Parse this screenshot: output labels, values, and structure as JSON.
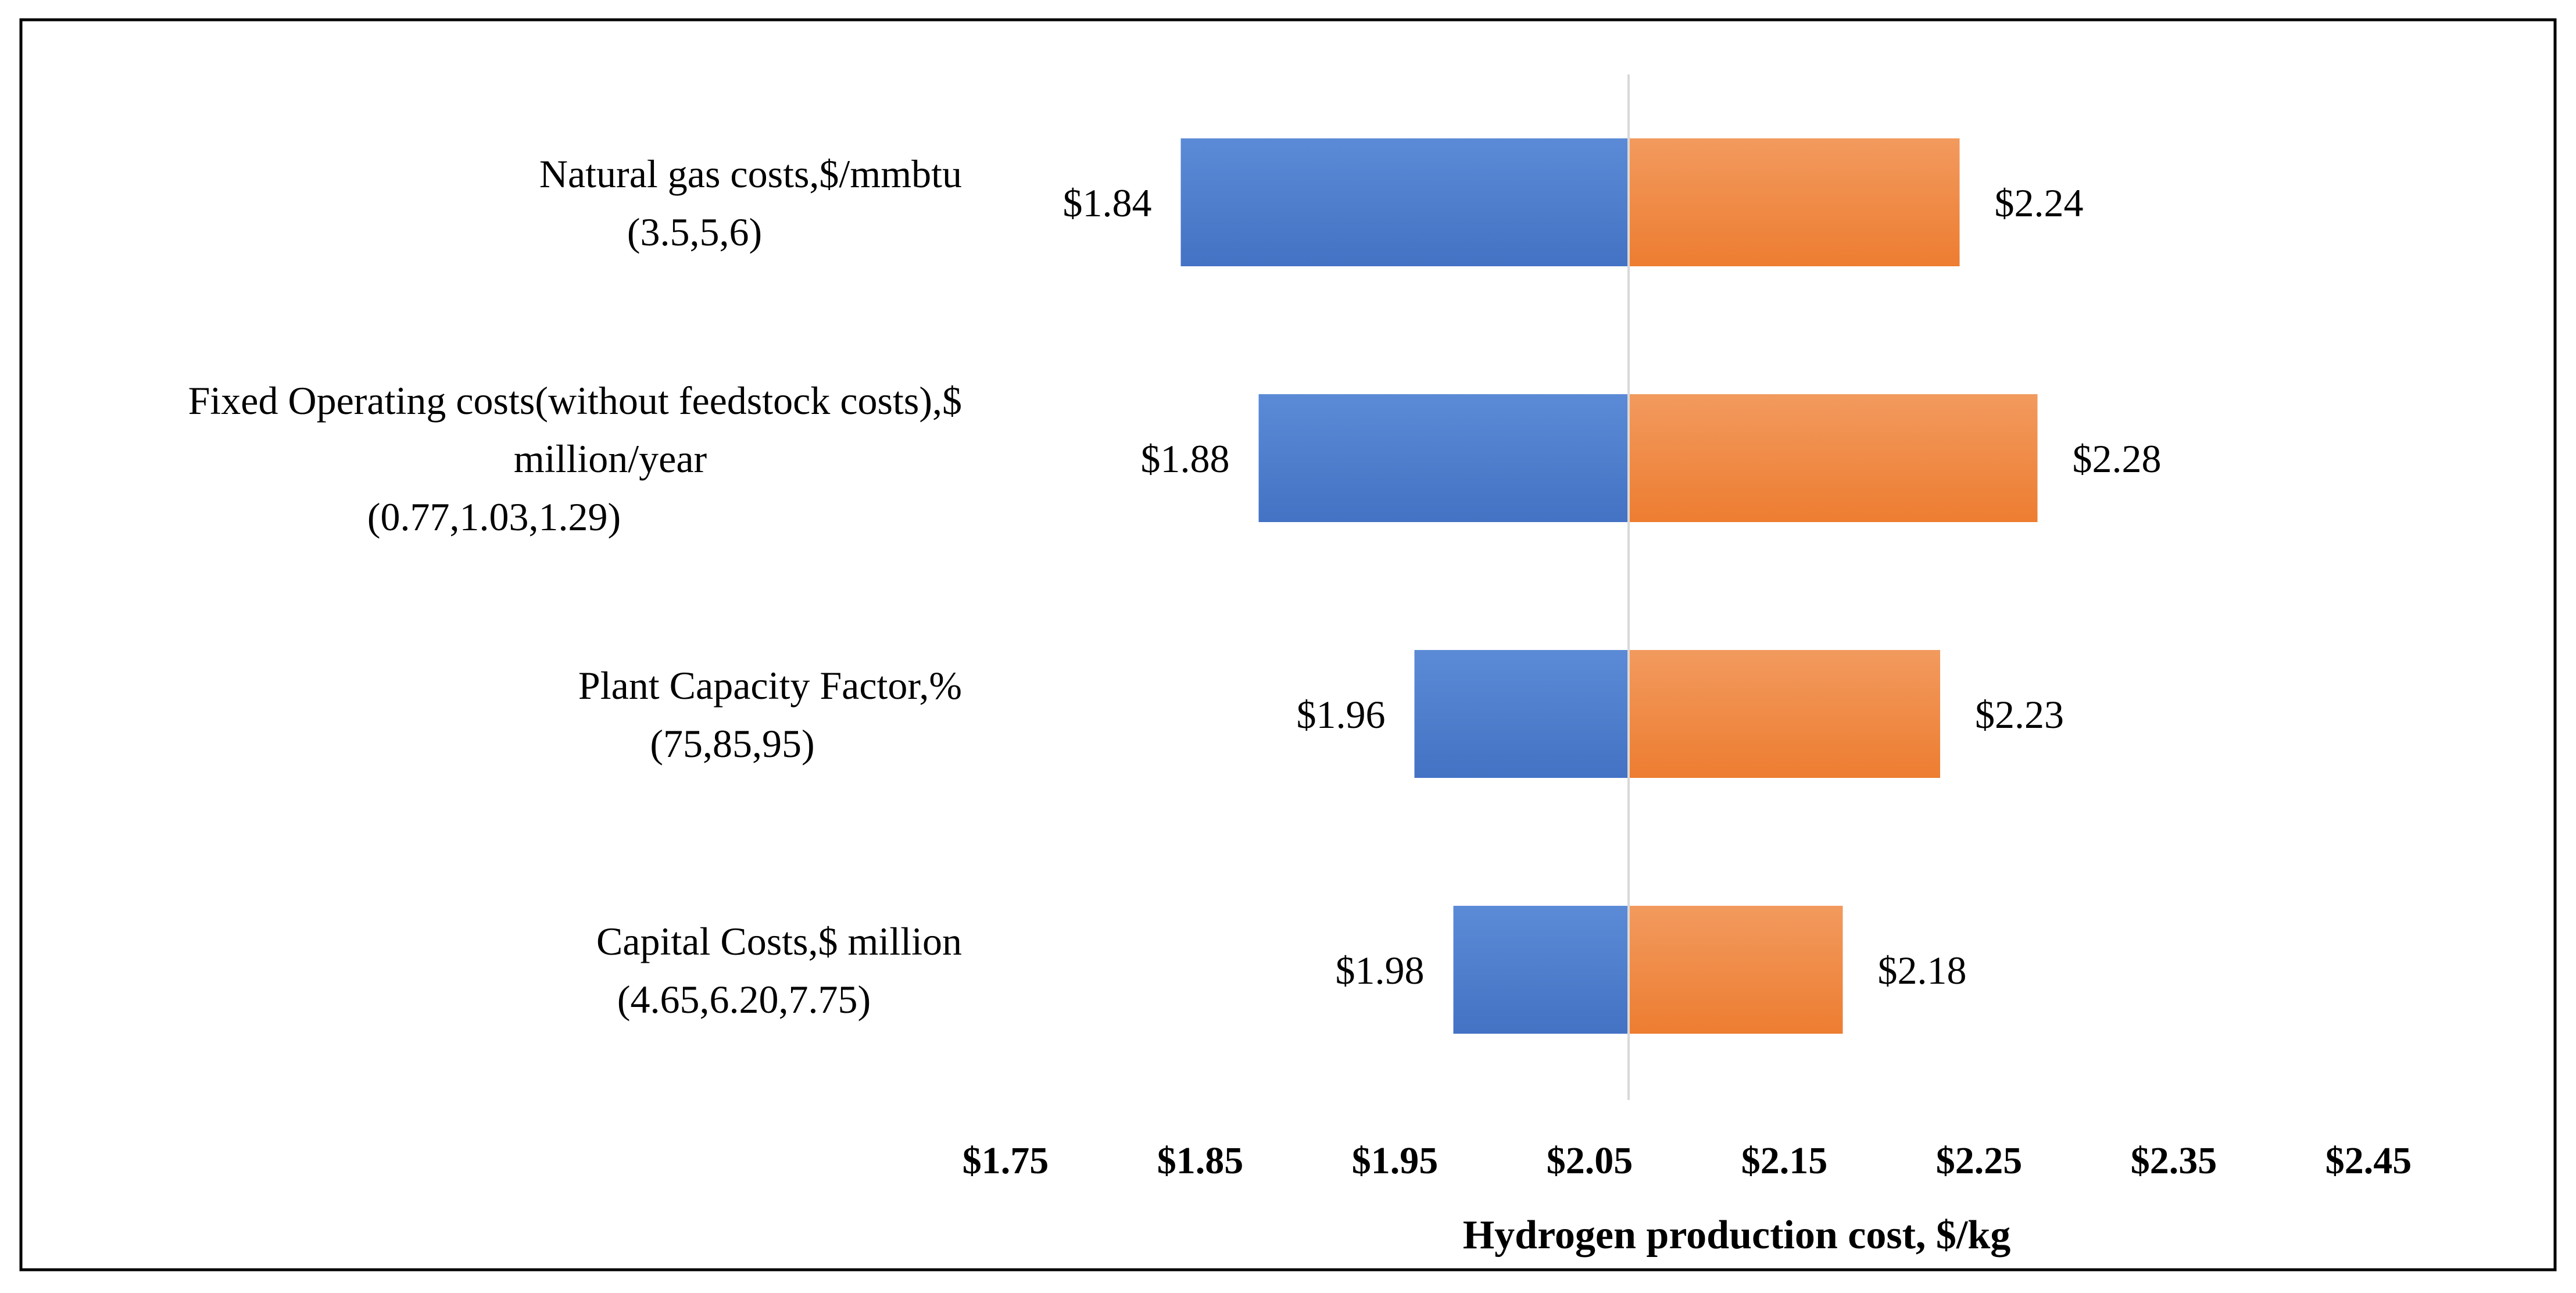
{
  "chart_data": {
    "type": "bar",
    "subtype": "tornado",
    "xlabel": "Hydrogen production cost, $/kg",
    "ylabel": "",
    "xlim": [
      1.75,
      2.5
    ],
    "base_value": 2.07,
    "x_ticks": [
      1.75,
      1.85,
      1.95,
      2.05,
      2.15,
      2.25,
      2.35,
      2.45
    ],
    "x_tick_labels": [
      "$1.75",
      "$1.85",
      "$1.95",
      "$2.05",
      "$2.15",
      "$2.25",
      "$2.35",
      "$2.45"
    ],
    "grid": false,
    "legend": "none",
    "colors": {
      "low": "#4472C4",
      "high": "#ED7D31",
      "low_light": "#5B8BD6",
      "high_light": "#F29A5E",
      "baseline": "#D9D9D9",
      "border": "#000000"
    },
    "categories": [
      {
        "lines": [
          "Natural gas costs,$/mmbtu",
          "(3.5,5,6)"
        ],
        "low": 1.84,
        "high": 2.24,
        "low_label": "$1.84",
        "high_label": "$2.24"
      },
      {
        "lines": [
          "Fixed Operating costs(without feedstock costs),$",
          "million/year",
          "(0.77,1.03,1.29)"
        ],
        "low": 1.88,
        "high": 2.28,
        "low_label": "$1.88",
        "high_label": "$2.28"
      },
      {
        "lines": [
          "Plant Capacity Factor,%",
          "(75,85,95)"
        ],
        "low": 1.96,
        "high": 2.23,
        "low_label": "$1.96",
        "high_label": "$2.23"
      },
      {
        "lines": [
          "Capital Costs,$ million",
          "(4.65,6.20,7.75)"
        ],
        "low": 1.98,
        "high": 2.18,
        "low_label": "$1.98",
        "high_label": "$2.18"
      }
    ]
  }
}
